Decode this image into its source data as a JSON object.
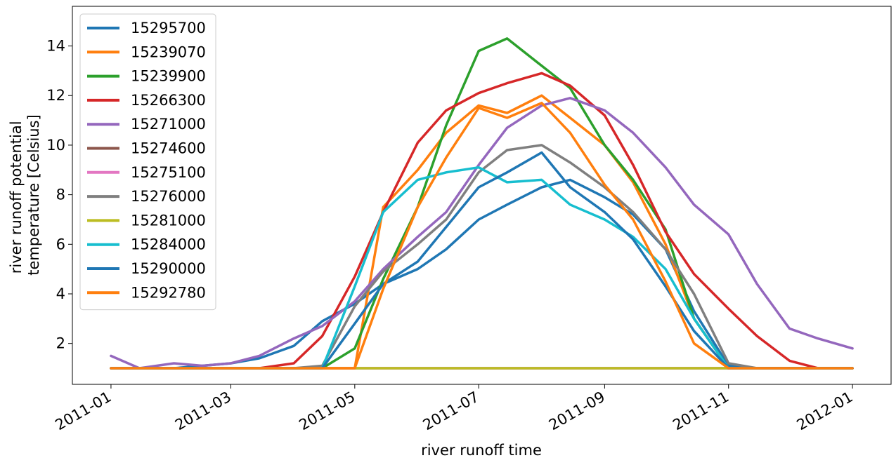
{
  "chart_data": {
    "type": "line",
    "title": "",
    "xlabel": "river runoff time",
    "ylabel_lines": [
      "river runoff potential",
      "temperature [Celsius]"
    ],
    "x_ticks": [
      "2011-01",
      "2011-03",
      "2011-05",
      "2011-07",
      "2011-09",
      "2011-11",
      "2012-01"
    ],
    "y_ticks": [
      2,
      4,
      6,
      8,
      10,
      12,
      14
    ],
    "ylim": [
      0.35,
      15.6
    ],
    "xlim": [
      "2010-12-13",
      "2012-01-20"
    ],
    "grid": false,
    "legend_position": "upper-left",
    "x_dates": [
      "2011-01-01",
      "2011-01-15",
      "2011-02-01",
      "2011-02-15",
      "2011-03-01",
      "2011-03-15",
      "2011-04-01",
      "2011-04-15",
      "2011-05-01",
      "2011-05-15",
      "2011-06-01",
      "2011-06-15",
      "2011-07-01",
      "2011-07-15",
      "2011-08-01",
      "2011-08-15",
      "2011-09-01",
      "2011-09-15",
      "2011-10-01",
      "2011-10-15",
      "2011-11-01",
      "2011-11-15",
      "2011-12-01",
      "2011-12-15",
      "2012-01-01"
    ],
    "series": [
      {
        "name": "15295700",
        "color": "#1f77b4",
        "values": [
          1.0,
          1.0,
          1.0,
          1.1,
          1.2,
          1.4,
          1.9,
          2.9,
          3.6,
          4.4,
          5.0,
          5.8,
          7.0,
          7.6,
          8.3,
          8.6,
          7.9,
          7.2,
          5.8,
          3.3,
          1.1,
          1.0,
          1.0,
          1.0,
          1.0
        ]
      },
      {
        "name": "15239070",
        "color": "#ff7f0e",
        "values": [
          1.0,
          1.0,
          1.0,
          1.0,
          1.0,
          1.0,
          1.0,
          1.0,
          1.0,
          7.5,
          9.0,
          10.5,
          11.6,
          11.3,
          12.0,
          11.1,
          10.0,
          8.5,
          6.0,
          3.0,
          1.0,
          1.0,
          1.0,
          1.0,
          1.0
        ]
      },
      {
        "name": "15239900",
        "color": "#2ca02c",
        "values": [
          1.0,
          1.0,
          1.0,
          1.0,
          1.0,
          1.0,
          1.0,
          1.0,
          1.8,
          4.6,
          7.5,
          10.8,
          13.8,
          14.3,
          13.2,
          12.3,
          10.0,
          8.6,
          6.6,
          3.0,
          1.0,
          1.0,
          1.0,
          1.0,
          1.0
        ]
      },
      {
        "name": "15266300",
        "color": "#d62728",
        "values": [
          1.0,
          1.0,
          1.0,
          1.0,
          1.0,
          1.0,
          1.2,
          2.3,
          4.7,
          7.3,
          10.1,
          11.4,
          12.1,
          12.5,
          12.9,
          12.4,
          11.2,
          9.2,
          6.5,
          4.8,
          3.4,
          2.3,
          1.3,
          1.0,
          1.0
        ]
      },
      {
        "name": "15271000",
        "color": "#9467bd",
        "values": [
          1.5,
          1.0,
          1.2,
          1.1,
          1.2,
          1.5,
          2.2,
          2.7,
          3.7,
          5.0,
          6.3,
          7.3,
          9.2,
          10.7,
          11.6,
          11.9,
          11.4,
          10.5,
          9.1,
          7.6,
          6.4,
          4.4,
          2.6,
          2.2,
          1.8
        ]
      },
      {
        "name": "15274600",
        "color": "#8c564b",
        "values": [
          1.0,
          1.0,
          1.0,
          1.0,
          1.0,
          1.0,
          1.0,
          1.0,
          1.0,
          1.0,
          1.0,
          1.0,
          1.0,
          1.0,
          1.0,
          1.0,
          1.0,
          1.0,
          1.0,
          1.0,
          1.0,
          1.0,
          1.0,
          1.0,
          1.0
        ]
      },
      {
        "name": "15275100",
        "color": "#e377c2",
        "values": [
          1.0,
          1.0,
          1.0,
          1.0,
          1.0,
          1.0,
          1.0,
          1.0,
          1.0,
          1.0,
          1.0,
          1.0,
          1.0,
          1.0,
          1.0,
          1.0,
          1.0,
          1.0,
          1.0,
          1.0,
          1.0,
          1.0,
          1.0,
          1.0,
          1.0
        ]
      },
      {
        "name": "15276000",
        "color": "#7f7f7f",
        "values": [
          1.0,
          1.0,
          1.0,
          1.0,
          1.0,
          1.0,
          1.0,
          1.1,
          3.5,
          4.9,
          6.0,
          7.0,
          8.9,
          9.8,
          10.0,
          9.3,
          8.3,
          7.3,
          5.8,
          4.0,
          1.2,
          1.0,
          1.0,
          1.0,
          1.0
        ]
      },
      {
        "name": "15281000",
        "color": "#bcbd22",
        "values": [
          1.0,
          1.0,
          1.0,
          1.0,
          1.0,
          1.0,
          1.0,
          1.0,
          1.0,
          1.0,
          1.0,
          1.0,
          1.0,
          1.0,
          1.0,
          1.0,
          1.0,
          1.0,
          1.0,
          1.0,
          1.0,
          1.0,
          1.0,
          1.0,
          1.0
        ]
      },
      {
        "name": "15284000",
        "color": "#17becf",
        "values": [
          1.0,
          1.0,
          1.0,
          1.0,
          1.0,
          1.0,
          1.0,
          1.0,
          4.3,
          7.3,
          8.6,
          8.9,
          9.1,
          8.5,
          8.6,
          7.6,
          7.0,
          6.3,
          5.0,
          3.0,
          1.0,
          1.0,
          1.0,
          1.0,
          1.0
        ]
      },
      {
        "name": "15290000",
        "color": "#1f77b4",
        "values": [
          1.0,
          1.0,
          1.0,
          1.0,
          1.0,
          1.0,
          1.0,
          1.0,
          2.8,
          4.4,
          5.3,
          6.7,
          8.3,
          8.9,
          9.7,
          8.3,
          7.3,
          6.2,
          4.3,
          2.5,
          1.0,
          1.0,
          1.0,
          1.0,
          1.0
        ]
      },
      {
        "name": "15292780",
        "color": "#ff7f0e",
        "values": [
          1.0,
          1.0,
          1.0,
          1.0,
          1.0,
          1.0,
          1.0,
          1.0,
          1.0,
          4.2,
          7.5,
          9.5,
          11.5,
          11.1,
          11.7,
          10.5,
          8.4,
          7.0,
          4.5,
          2.0,
          1.0,
          1.0,
          1.0,
          1.0,
          1.0
        ]
      }
    ]
  }
}
